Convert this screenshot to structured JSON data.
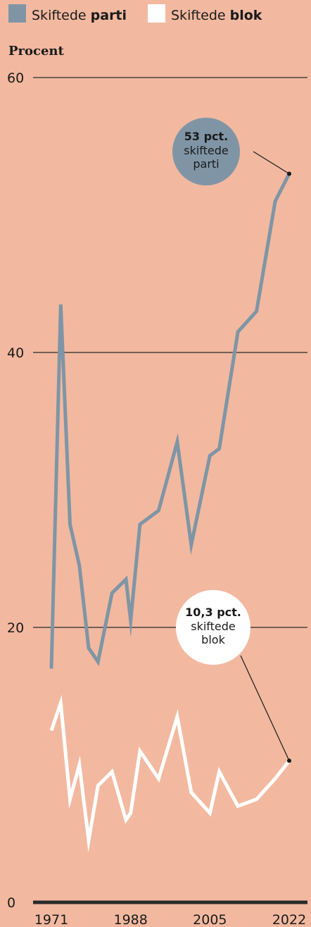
{
  "colors": {
    "background": "#f2b9a0",
    "party_series": "#7f95a6",
    "bloc_series": "#ffffff",
    "text": "#1a1a1a",
    "grid": "#2a2a2a"
  },
  "legend": [
    {
      "prefix": "Skiftede ",
      "bold": "parti",
      "swatch": "#7f95a6"
    },
    {
      "prefix": "Skiftede ",
      "bold": "blok",
      "swatch": "#ffffff"
    }
  ],
  "chart_data": {
    "type": "line",
    "ylabel": "Procent",
    "ylim": [
      0,
      60
    ],
    "yticks": [
      0,
      20,
      40,
      60
    ],
    "xlim": [
      1969,
      2023
    ],
    "xticks": [
      1971,
      1988,
      2005,
      2022
    ],
    "grid": true,
    "legend_position": "top",
    "series": [
      {
        "name": "Skiftede parti",
        "x": [
          1971,
          1973,
          1975,
          1977,
          1979,
          1981,
          1984,
          1987,
          1988,
          1990,
          1994,
          1998,
          2001,
          2005,
          2007,
          2011,
          2015,
          2019,
          2022
        ],
        "y": [
          17,
          43.5,
          27.5,
          24.5,
          18.5,
          17.5,
          22.5,
          23.5,
          20.5,
          27.5,
          28.5,
          33.5,
          26,
          32.5,
          33,
          41.5,
          43,
          51,
          53
        ]
      },
      {
        "name": "Skiftede blok",
        "x": [
          1971,
          1973,
          1975,
          1977,
          1979,
          1981,
          1984,
          1987,
          1988,
          1990,
          1994,
          1998,
          2001,
          2005,
          2007,
          2011,
          2015,
          2019,
          2022
        ],
        "y": [
          12.5,
          14.5,
          7.5,
          10,
          4.5,
          8.5,
          9.5,
          6,
          6.5,
          11,
          9,
          13.5,
          8,
          6.5,
          9.5,
          7,
          7.5,
          9,
          10.3
        ]
      }
    ],
    "annotations": [
      {
        "series": 0,
        "value_text": "53 pct.",
        "line1": "skiftede",
        "line2": "parti"
      },
      {
        "series": 1,
        "value_text": "10,3 pct.",
        "line1": "skiftede",
        "line2": "blok"
      }
    ]
  }
}
